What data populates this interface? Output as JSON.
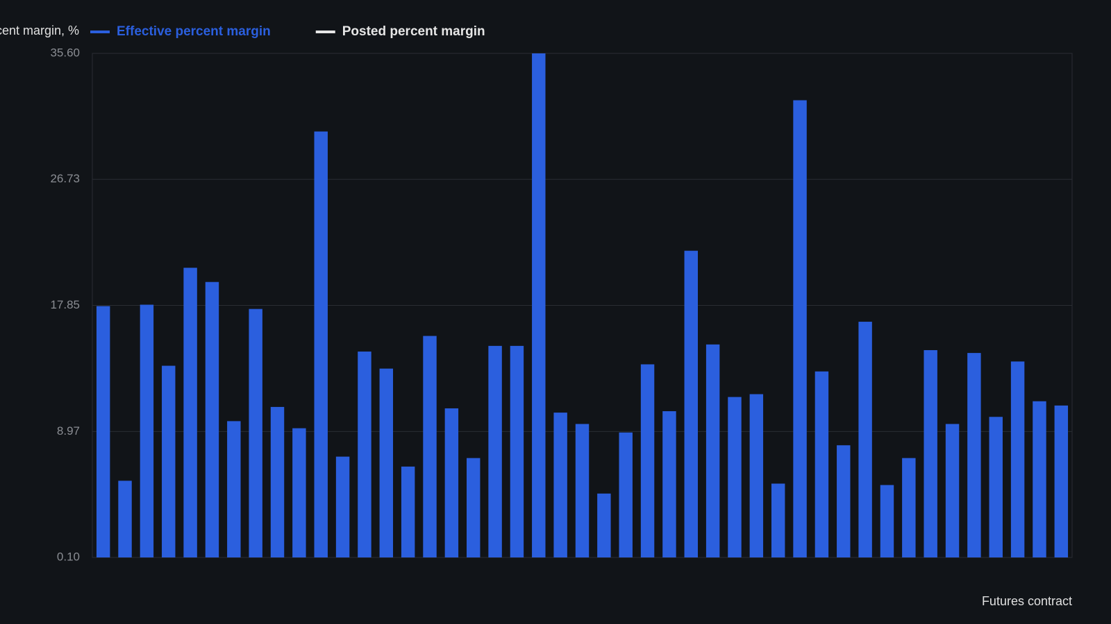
{
  "chart_data": {
    "type": "bar",
    "y_label": "Percent margin, %",
    "x_label": "Futures contract",
    "categories": [
      null,
      null,
      null,
      null,
      null,
      null,
      null,
      null,
      null,
      null,
      null,
      null,
      null,
      null,
      null,
      null,
      null,
      null,
      null,
      null,
      null,
      null,
      null,
      null,
      null,
      null,
      null,
      null,
      null,
      null,
      null,
      null,
      null,
      null,
      null,
      null,
      null,
      null,
      null,
      null,
      null,
      null,
      null,
      null,
      null
    ],
    "series": [
      {
        "name": "Effective percent margin",
        "color": "#2b5fde",
        "values": [
          17.8,
          5.5,
          17.9,
          13.6,
          20.5,
          19.5,
          9.7,
          17.6,
          10.7,
          9.2,
          30.1,
          7.2,
          14.6,
          13.4,
          6.5,
          15.7,
          10.6,
          7.1,
          15.0,
          15.0,
          35.6,
          10.3,
          9.5,
          4.6,
          8.9,
          13.7,
          10.4,
          21.7,
          15.1,
          11.4,
          11.6,
          5.3,
          32.3,
          13.2,
          8.0,
          16.7,
          5.2,
          7.1,
          14.7,
          9.5,
          14.5,
          10.0,
          13.9,
          11.1,
          10.8
        ]
      },
      {
        "name": "Posted percent margin",
        "color": "#e6e6e6",
        "values": [
          null,
          null,
          null,
          null,
          null,
          null,
          null,
          null,
          null,
          null,
          null,
          null,
          null,
          null,
          null,
          null,
          null,
          null,
          null,
          null,
          null,
          null,
          null,
          null,
          null,
          null,
          null,
          null,
          null,
          null,
          null,
          null,
          null,
          null,
          null,
          null,
          null,
          null,
          null,
          null,
          null,
          null,
          null,
          null,
          null
        ]
      }
    ],
    "ylim": [
      0.1,
      35.6
    ],
    "yticks": [
      {
        "value": 0.1,
        "label": "0.10"
      },
      {
        "value": 8.97,
        "label": "8.97"
      },
      {
        "value": 17.85,
        "label": "17.85"
      },
      {
        "value": 26.73,
        "label": "26.73"
      },
      {
        "value": 35.6,
        "label": "35.60"
      }
    ],
    "grid": true
  }
}
